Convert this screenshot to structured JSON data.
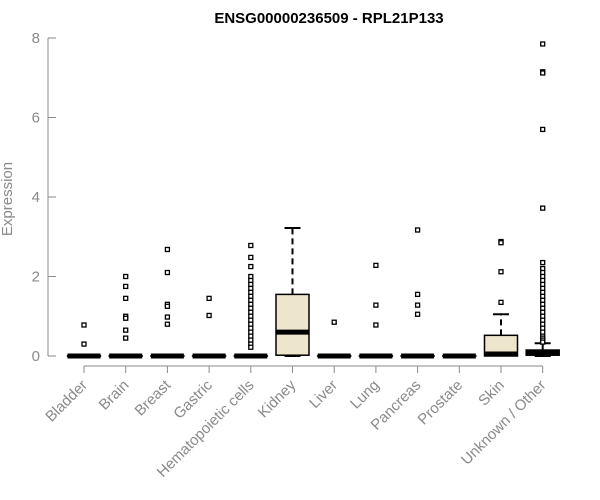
{
  "chart_data": {
    "type": "boxplot",
    "title": "ENSG00000236509 - RPL21P133",
    "xlabel": "",
    "ylabel": "Expression",
    "ylim": [
      0,
      8
    ],
    "yticks": [
      0,
      2,
      4,
      6,
      8
    ],
    "grid": false,
    "legend": "none",
    "colors": {
      "box_fill": "#ede6cc",
      "box_stroke": "#000000",
      "axis": "#8a8a8a"
    },
    "categories": [
      "Bladder",
      "Brain",
      "Breast",
      "Gastric",
      "Hematopoietic cells",
      "Kidney",
      "Liver",
      "Lung",
      "Pancreas",
      "Prostate",
      "Skin",
      "Unknown / Other"
    ],
    "boxes": [
      {
        "category": "Bladder",
        "q1": 0,
        "median": 0,
        "q3": 0,
        "whisker_low": 0,
        "whisker_high": 0,
        "outliers": [
          0.78,
          0.3
        ]
      },
      {
        "category": "Brain",
        "q1": 0,
        "median": 0,
        "q3": 0,
        "whisker_low": 0,
        "whisker_high": 0,
        "outliers": [
          2.0,
          1.75,
          1.45,
          1.0,
          0.95,
          0.65,
          0.45
        ]
      },
      {
        "category": "Breast",
        "q1": 0,
        "median": 0,
        "q3": 0,
        "whisker_low": 0,
        "whisker_high": 0,
        "outliers": [
          2.68,
          2.1,
          1.3,
          1.25,
          0.98,
          0.8
        ]
      },
      {
        "category": "Gastric",
        "q1": 0,
        "median": 0,
        "q3": 0,
        "whisker_low": 0,
        "whisker_high": 0,
        "outliers": [
          1.45,
          1.02
        ]
      },
      {
        "category": "Hematopoietic cells",
        "q1": 0,
        "median": 0,
        "q3": 0,
        "whisker_low": 0,
        "whisker_high": 0,
        "outliers": [
          2.78,
          2.48,
          2.25,
          2.0,
          1.9,
          1.8,
          1.7,
          1.6,
          1.5,
          1.4,
          1.3,
          1.2,
          1.1,
          1.0,
          0.9,
          0.8,
          0.7,
          0.6,
          0.5,
          0.4,
          0.3,
          0.22
        ]
      },
      {
        "category": "Kidney",
        "q1": 0.02,
        "median": 0.6,
        "q3": 1.55,
        "whisker_low": 0,
        "whisker_high": 3.22,
        "outliers": []
      },
      {
        "category": "Liver",
        "q1": 0,
        "median": 0,
        "q3": 0,
        "whisker_low": 0,
        "whisker_high": 0,
        "outliers": [
          0.85
        ]
      },
      {
        "category": "Lung",
        "q1": 0,
        "median": 0,
        "q3": 0,
        "whisker_low": 0,
        "whisker_high": 0,
        "outliers": [
          2.28,
          1.28,
          0.78
        ]
      },
      {
        "category": "Pancreas",
        "q1": 0,
        "median": 0,
        "q3": 0,
        "whisker_low": 0,
        "whisker_high": 0,
        "outliers": [
          3.17,
          1.55,
          1.28,
          1.05
        ]
      },
      {
        "category": "Prostate",
        "q1": 0,
        "median": 0,
        "q3": 0,
        "whisker_low": 0,
        "whisker_high": 0,
        "outliers": []
      },
      {
        "category": "Skin",
        "q1": 0,
        "median": 0.05,
        "q3": 0.52,
        "whisker_low": 0,
        "whisker_high": 1.05,
        "outliers": [
          2.88,
          2.85,
          2.12,
          1.35
        ]
      },
      {
        "category": "Unknown / Other",
        "q1": 0.02,
        "median": 0.08,
        "q3": 0.15,
        "whisker_low": 0,
        "whisker_high": 0.32,
        "outliers": [
          7.85,
          7.15,
          7.12,
          5.7,
          3.72,
          2.35,
          2.2,
          2.1,
          2.0,
          1.9,
          1.8,
          1.7,
          1.6,
          1.5,
          1.4,
          1.3,
          1.2,
          1.1,
          1.0,
          0.9,
          0.8,
          0.7,
          0.6,
          0.5,
          0.45,
          0.4,
          0.35
        ]
      }
    ]
  }
}
